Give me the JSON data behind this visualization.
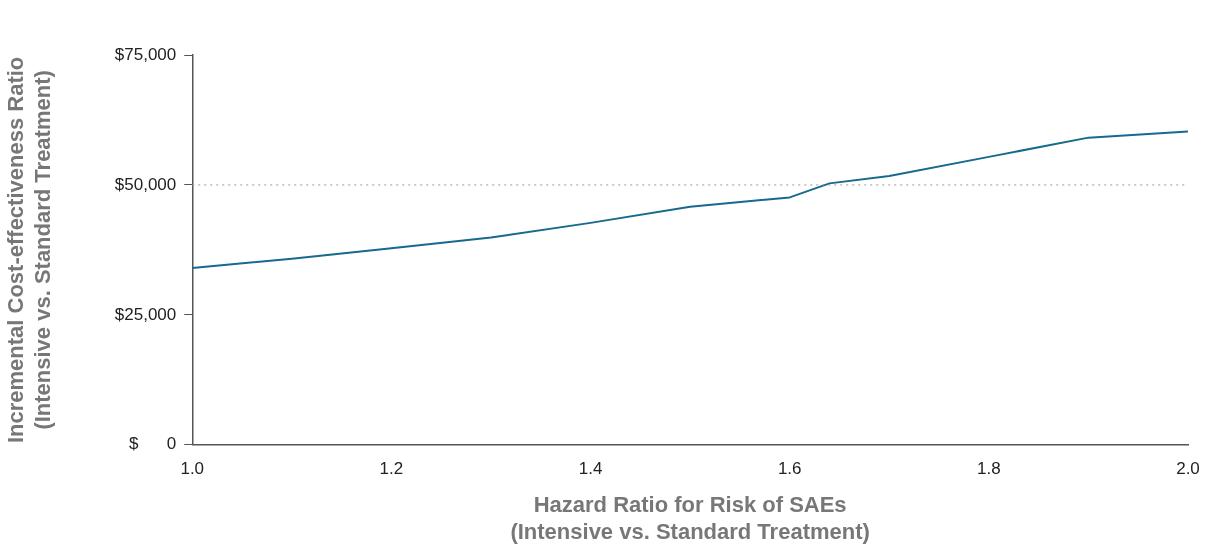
{
  "chart_data": {
    "type": "line",
    "xlabel": "Hazard Ratio for Risk of SAEs\n(Intensive vs. Standard Treatment)",
    "ylabel": "Incremental Cost-effectiveness Ratio\n(Intensive vs. Standard Treatment)",
    "x": [
      1.0,
      1.1,
      1.2,
      1.3,
      1.4,
      1.5,
      1.6,
      1.64,
      1.7,
      1.8,
      1.9,
      2.0
    ],
    "series": [
      {
        "color": "#17698e",
        "values": [
          34000,
          35800,
          37800,
          39900,
          42700,
          45800,
          47600,
          50300,
          51700,
          55400,
          59100,
          60300
        ]
      }
    ],
    "xlim": [
      1,
      2
    ],
    "xticks": [
      {
        "value": 1,
        "label": "1.0"
      },
      {
        "value": 1.2,
        "label": "1.2"
      },
      {
        "value": 1.4,
        "label": "1.4"
      },
      {
        "value": 1.6,
        "label": "1.6"
      },
      {
        "value": 1.8,
        "label": "1.8"
      },
      {
        "value": 2,
        "label": "2.0"
      }
    ],
    "ylim": [
      0,
      75000
    ],
    "yticks": [
      {
        "value": 0,
        "label": "$      0"
      },
      {
        "value": 25000,
        "label": "$25,000"
      },
      {
        "value": 50000,
        "label": "$50,000"
      },
      {
        "value": 75000,
        "label": "$75,000"
      }
    ],
    "ref_lines": [
      {
        "axis": "y",
        "value": 50000,
        "color": "#999999",
        "line_style": "dotted"
      }
    ],
    "grid": false,
    "legend": false,
    "marker": "none",
    "line_style": "solid"
  }
}
